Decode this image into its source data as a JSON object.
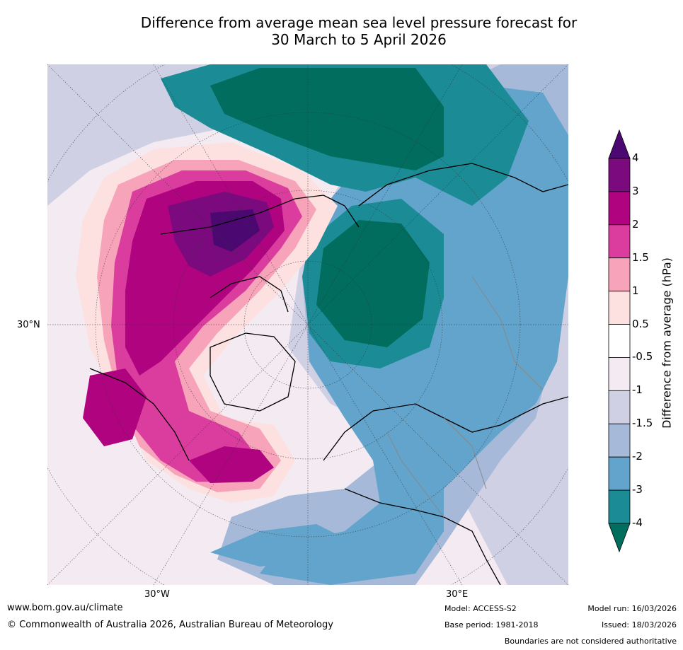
{
  "title": {
    "line1": "Difference from average mean sea level pressure forecast for",
    "line2": "30 March to 5 April 2026"
  },
  "map": {
    "lat_label": "30°N",
    "lon_labels": [
      "30°W",
      "30°E"
    ]
  },
  "colorbar": {
    "title": "Difference from average (hPa)",
    "ticks": [
      "4",
      "3",
      "2",
      "1.5",
      "1",
      "0.5",
      "-0.5",
      "-1",
      "-1.5",
      "-2",
      "-3",
      "-4"
    ],
    "colors": [
      "#4a0870",
      "#7a0a7d",
      "#b0037f",
      "#da3d9e",
      "#f7a3ba",
      "#fde0e0",
      "#ffffff",
      "#f4eaf2",
      "#cfd0e4",
      "#a6b9d9",
      "#62a4cc",
      "#1b8c96",
      "#006d5e"
    ]
  },
  "footer": {
    "website": "www.bom.gov.au/climate",
    "copyright": "© Commonwealth of Australia 2026, Australian Bureau of Meteorology",
    "model": "Model: ACCESS-S2",
    "base_period": "Base period: 1981-2018",
    "model_run": "Model run: 16/03/2026",
    "issued": "Issued: 18/03/2026",
    "disclaimer": "Boundaries are not considered authoritative"
  }
}
